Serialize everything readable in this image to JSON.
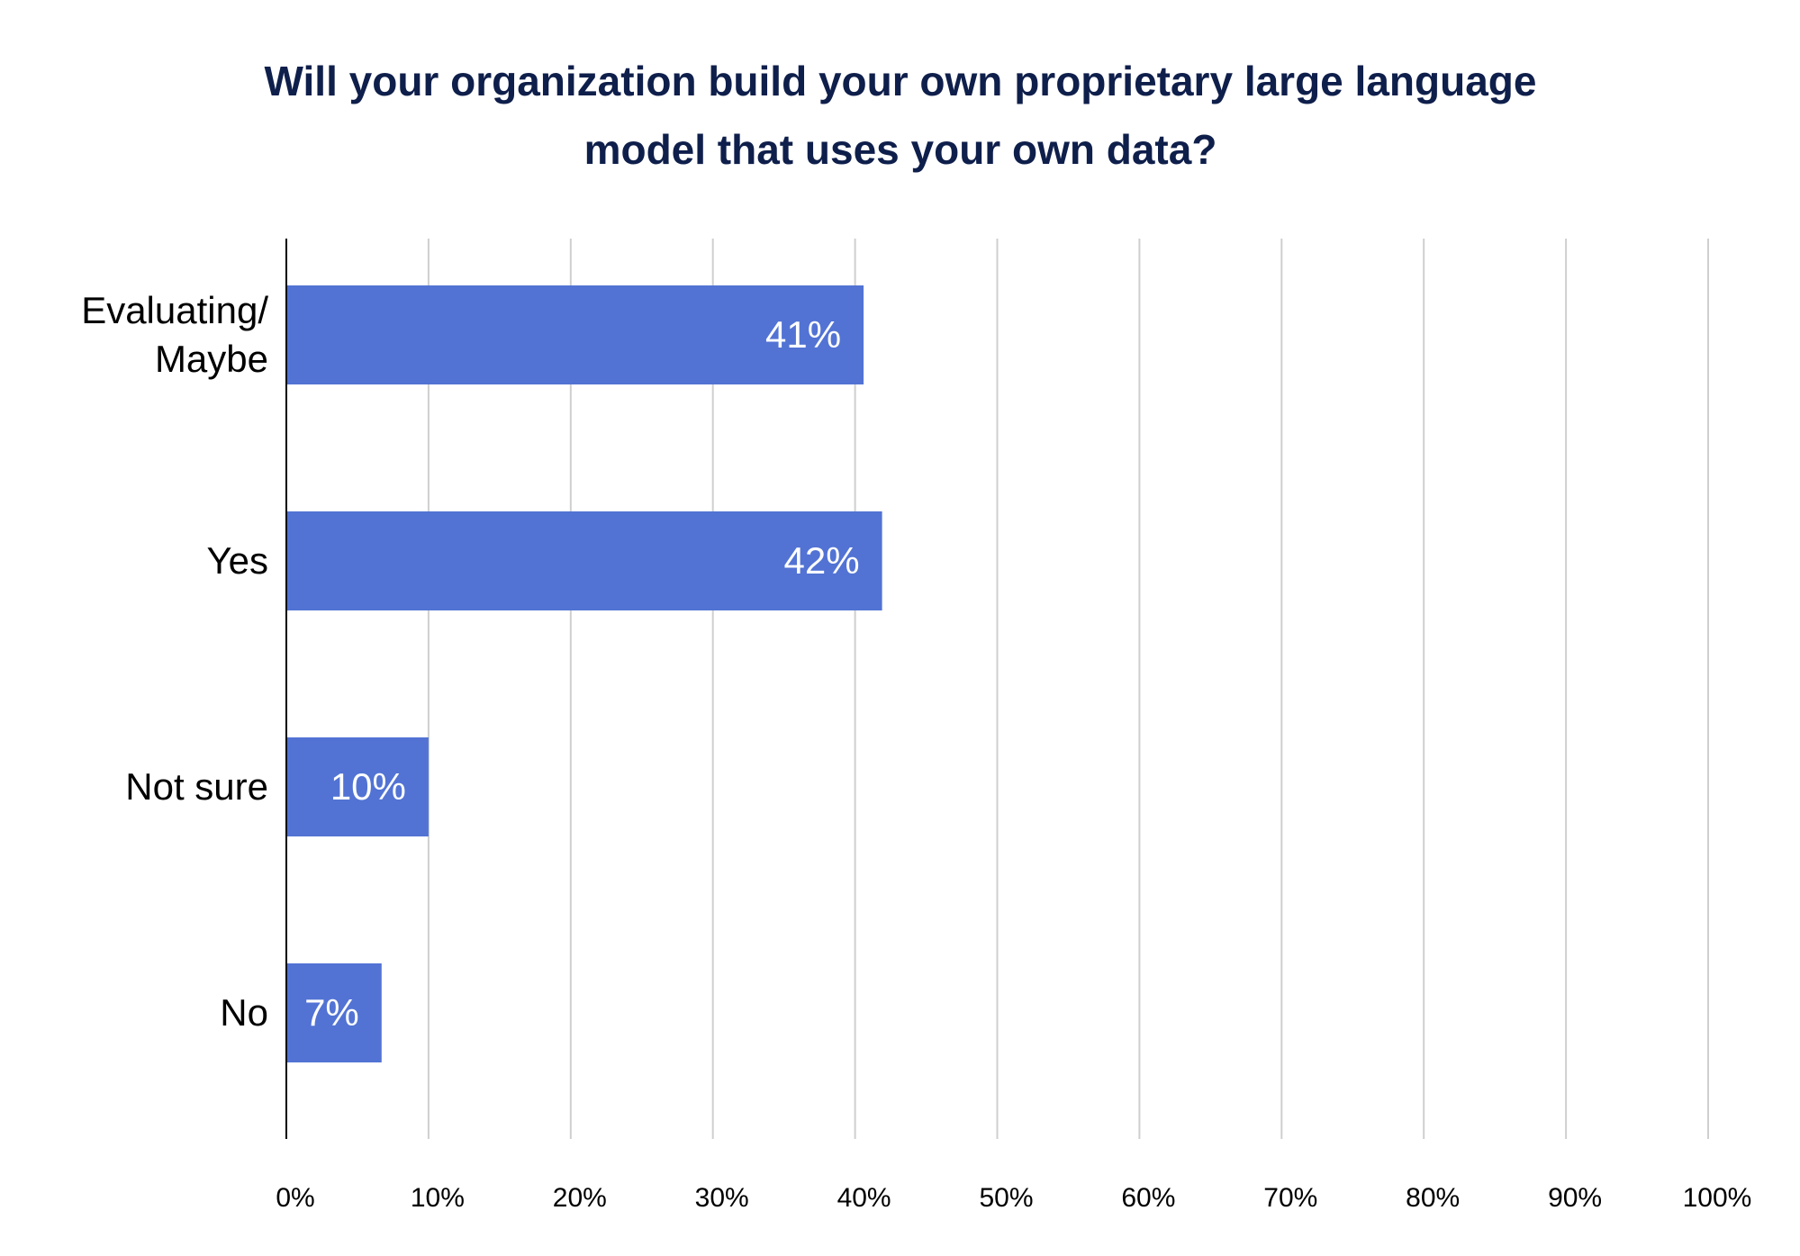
{
  "chart_data": {
    "type": "bar",
    "orientation": "horizontal",
    "title_lines": [
      "Will your organization build your own proprietary large language",
      "model that uses your own data?"
    ],
    "categories": [
      [
        "Evaluating/",
        "Maybe"
      ],
      [
        "Yes"
      ],
      [
        "Not sure"
      ],
      [
        "No"
      ]
    ],
    "values": [
      40.6,
      41.9,
      10,
      6.7
    ],
    "data_labels": [
      "41%",
      "42%",
      "10%",
      "7%"
    ],
    "x_ticks": [
      "0%",
      "10%",
      "20%",
      "30%",
      "40%",
      "50%",
      "60%",
      "70%",
      "80%",
      "90%",
      "100%"
    ],
    "xlim": [
      0,
      100
    ],
    "grid": true,
    "colors": {
      "bar": "#5273d4",
      "title": "#0f1f4b",
      "grid": "#cfcfcf",
      "axis": "#000000",
      "label": "#000000",
      "data_label": "#ffffff"
    }
  }
}
